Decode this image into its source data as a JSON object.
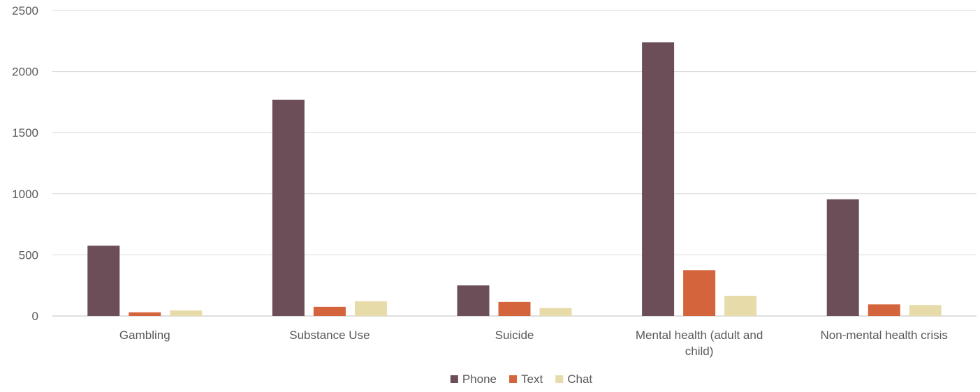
{
  "chart_data": {
    "type": "bar",
    "title": "",
    "xlabel": "",
    "ylabel": "",
    "categories": [
      "Gambling",
      "Substance Use",
      "Suicide",
      "Mental health (adult and child)",
      "Non-mental health crisis"
    ],
    "series": [
      {
        "name": "Phone",
        "color": "#6b4e57",
        "values": [
          575,
          1770,
          250,
          2240,
          955
        ]
      },
      {
        "name": "Text",
        "color": "#d4643b",
        "values": [
          30,
          75,
          115,
          375,
          95
        ]
      },
      {
        "name": "Chat",
        "color": "#e8dbaa",
        "values": [
          45,
          120,
          65,
          165,
          90
        ]
      }
    ],
    "ylim": [
      0,
      2500
    ],
    "yticks": [
      0,
      500,
      1000,
      1500,
      2000,
      2500
    ],
    "grid": true,
    "legend": "bottom-center"
  }
}
